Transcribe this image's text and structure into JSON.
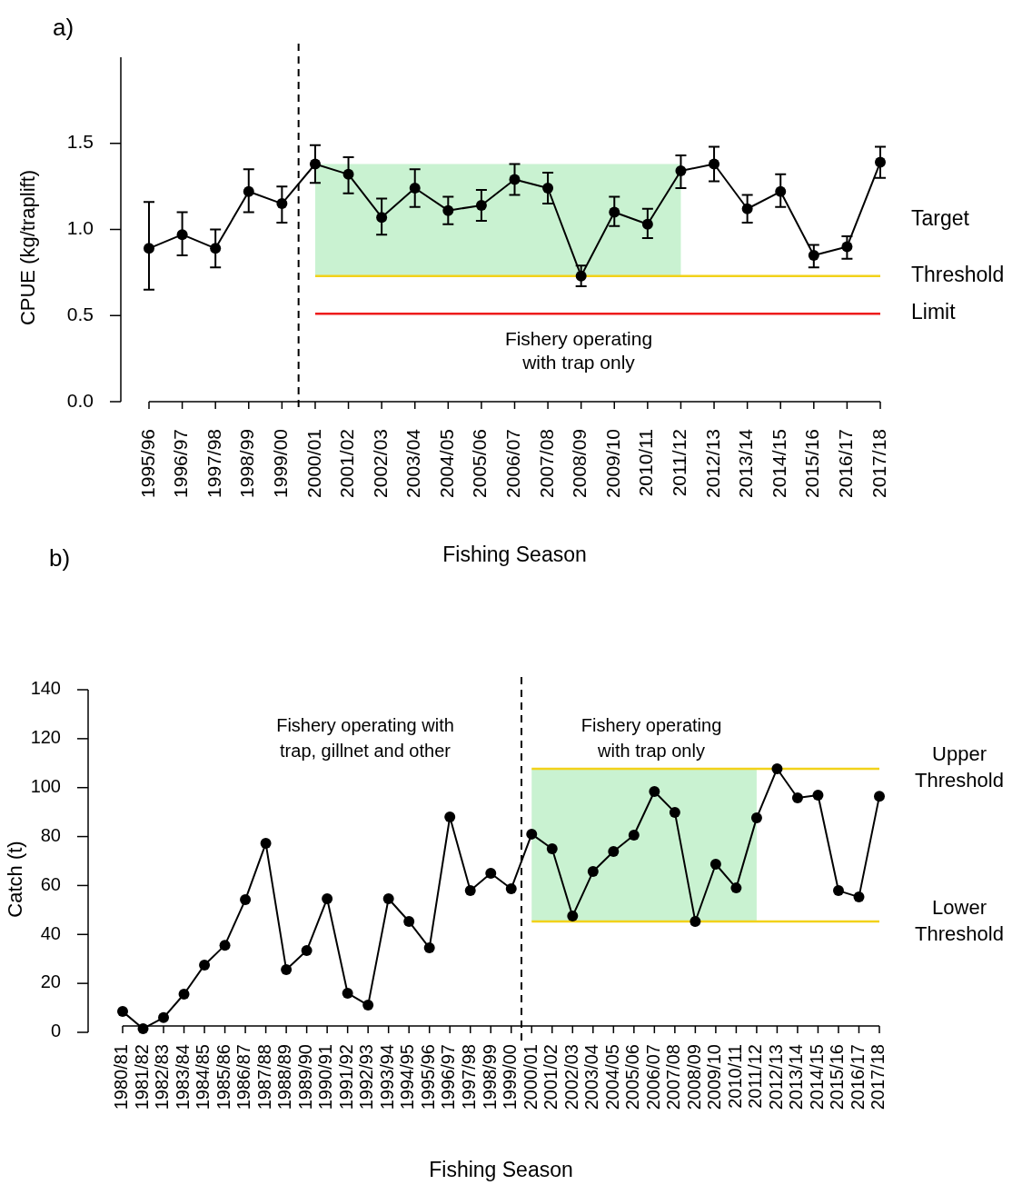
{
  "chart_data": [
    {
      "type": "line",
      "title": "a)",
      "xlabel": "Fishing Season",
      "ylabel": "CPUE (kg/traplift)",
      "categories": [
        "1995/96",
        "1996/97",
        "1997/98",
        "1998/99",
        "1999/00",
        "2000/01",
        "2001/02",
        "2002/03",
        "2003/04",
        "2004/05",
        "2005/06",
        "2006/07",
        "2007/08",
        "2008/09",
        "2009/10",
        "2010/11",
        "2011/12",
        "2012/13",
        "2013/14",
        "2014/15",
        "2015/16",
        "2016/17",
        "2017/18"
      ],
      "series": [
        {
          "color": "#000000",
          "values": [
            0.89,
            0.97,
            0.89,
            1.22,
            1.15,
            1.38,
            1.32,
            1.07,
            1.24,
            1.11,
            1.14,
            1.29,
            1.24,
            0.73,
            1.1,
            1.03,
            1.34,
            1.38,
            1.12,
            1.22,
            0.85,
            0.9,
            1.39
          ],
          "errors": [
            [
              0.65,
              1.16
            ],
            [
              0.85,
              1.1
            ],
            [
              0.78,
              1.0
            ],
            [
              1.1,
              1.35
            ],
            [
              1.04,
              1.25
            ],
            [
              1.27,
              1.49
            ],
            [
              1.21,
              1.42
            ],
            [
              0.97,
              1.18
            ],
            [
              1.13,
              1.35
            ],
            [
              1.03,
              1.19
            ],
            [
              1.05,
              1.23
            ],
            [
              1.2,
              1.38
            ],
            [
              1.15,
              1.33
            ],
            [
              0.67,
              0.79
            ],
            [
              1.02,
              1.19
            ],
            [
              0.95,
              1.12
            ],
            [
              1.24,
              1.43
            ],
            [
              1.28,
              1.48
            ],
            [
              1.04,
              1.2
            ],
            [
              1.13,
              1.32
            ],
            [
              0.78,
              0.91
            ],
            [
              0.83,
              0.96
            ],
            [
              1.3,
              1.48
            ]
          ]
        }
      ],
      "ylim": [
        0,
        2
      ],
      "yticks": [
        {
          "value": 0,
          "label": "0.0"
        },
        0.5,
        {
          "value": 1,
          "label": "1.0"
        },
        1.5
      ],
      "ref_lines": [
        {
          "axis": "y",
          "value": 0.73,
          "label": "Threshold",
          "color": "#f2d21a"
        },
        {
          "axis": "y",
          "value": 0.51,
          "label": "Limit",
          "color": "#ee1c1c"
        }
      ],
      "bands": [
        {
          "axis": "x",
          "from": "2000/01",
          "to": "2011/12",
          "color": "#c9f2d1"
        }
      ],
      "annotations": [
        "Target",
        "Fishery operating\nwith trap only"
      ],
      "marker": "circle",
      "line_style": "solid",
      "grid": false
    },
    {
      "type": "line",
      "title": "b)",
      "xlabel": "Fishing Season",
      "ylabel": "Catch (t)",
      "categories": [
        "1980/81",
        "1981/82",
        "1982/83",
        "1983/84",
        "1984/85",
        "1985/86",
        "1986/87",
        "1987/88",
        "1988/89",
        "1989/90",
        "1990/91",
        "1991/92",
        "1992/93",
        "1993/94",
        "1994/95",
        "1995/96",
        "1996/97",
        "1997/98",
        "1998/99",
        "1999/00",
        "2000/01",
        "2001/02",
        "2002/03",
        "2003/04",
        "2004/05",
        "2005/06",
        "2006/07",
        "2007/08",
        "2008/09",
        "2009/10",
        "2010/11",
        "2011/12",
        "2012/13",
        "2013/14",
        "2014/15",
        "2015/16",
        "2016/17",
        "2017/18"
      ],
      "series": [
        {
          "color": "#000000",
          "values": [
            8.5,
            1.5,
            6,
            15.6,
            27.5,
            35.6,
            54.2,
            77.2,
            25.6,
            33.4,
            54.6,
            16,
            11.1,
            54.6,
            45.3,
            34.5,
            88,
            57.9,
            65,
            58.7,
            81,
            75,
            47.5,
            65.7,
            73.9,
            80.6,
            98.4,
            89.9,
            45.3,
            68.7,
            59,
            87.6,
            107.7,
            95.8,
            96.9,
            57.9,
            55.3,
            96.5
          ]
        }
      ],
      "ylim": [
        0,
        140
      ],
      "yticks": [
        0,
        20,
        40,
        60,
        80,
        100,
        120,
        140
      ],
      "ref_lines": [
        {
          "axis": "y",
          "value": 107.7,
          "label": "Upper\nThreshold",
          "color": "#f2d21a"
        },
        {
          "axis": "y",
          "value": 45.3,
          "label": "Lower\nThreshold",
          "color": "#f2d21a"
        }
      ],
      "bands": [
        {
          "axis": "x",
          "from": "2000/01",
          "to": "2011/12",
          "color": "#c9f2d1"
        }
      ],
      "annotations": [
        "Fishery operating with\ntrap, gillnet and other",
        "Fishery operating\nwith trap only"
      ],
      "marker": "circle",
      "line_style": "solid",
      "grid": false
    }
  ]
}
